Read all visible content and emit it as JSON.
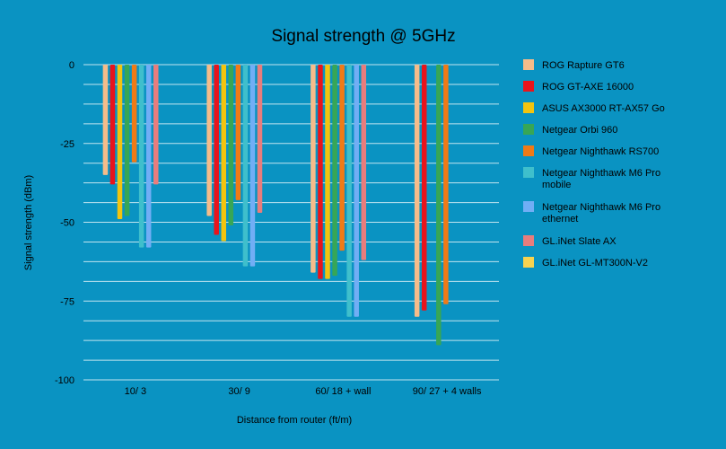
{
  "chart_data": {
    "type": "bar",
    "title": "Signal strength @ 5GHz",
    "xlabel": "Distance from router (ft/m)",
    "ylabel": "Signal strength (dBm)",
    "ylim": [
      -100,
      0
    ],
    "yticks": [
      0,
      -25,
      -50,
      -75,
      -100
    ],
    "grid": true,
    "legend_position": "right",
    "categories": [
      "10/ 3",
      "30/ 9",
      "60/ 18 + wall",
      "90/ 27 + 4 walls"
    ],
    "series": [
      {
        "name": "ROG Rapture GT6",
        "legend_lines": [
          "ROG Rapture GT6"
        ],
        "color": "#f5bc8a",
        "values": [
          -35,
          -48,
          -66,
          -80
        ]
      },
      {
        "name": "ROG GT-AXE 16000",
        "legend_lines": [
          "ROG GT-AXE 16000"
        ],
        "color": "#e8141c",
        "values": [
          -38,
          -54,
          -68,
          -78
        ]
      },
      {
        "name": "ASUS AX3000 RT-AX57 Go",
        "legend_lines": [
          "ASUS AX3000 RT-AX57 Go"
        ],
        "color": "#f2c40f",
        "values": [
          -49,
          -56,
          -68,
          null
        ]
      },
      {
        "name": "Netgear Orbi 960",
        "legend_lines": [
          "Netgear Orbi 960"
        ],
        "color": "#37a656",
        "values": [
          -48,
          -51,
          -67,
          -89
        ]
      },
      {
        "name": "Netgear Nighthawk RS700",
        "legend_lines": [
          "Netgear Nighthawk RS700"
        ],
        "color": "#f07a16",
        "values": [
          -31,
          -43,
          -59,
          -76
        ]
      },
      {
        "name": "Netgear Nighthawk M6 Pro mobile",
        "legend_lines": [
          "Netgear Nighthawk M6 Pro",
          "mobile"
        ],
        "color": "#3fbfcc",
        "values": [
          -58,
          -64,
          -80,
          null
        ]
      },
      {
        "name": "Netgear Nighthawk M6 Pro ethernet",
        "legend_lines": [
          "Netgear Nighthawk M6 Pro",
          "ethernet"
        ],
        "color": "#71aef5",
        "values": [
          -58,
          -64,
          -80,
          null
        ]
      },
      {
        "name": "GL.iNet Slate AX",
        "legend_lines": [
          "GL.iNet Slate AX"
        ],
        "color": "#e87d7d",
        "values": [
          -38,
          -47,
          -62,
          null
        ]
      },
      {
        "name": "GL.iNet GL-MT300N-V2",
        "legend_lines": [
          "GL.iNet GL-MT300N-V2"
        ],
        "color": "#f7d350",
        "values": [
          null,
          null,
          null,
          null
        ]
      }
    ]
  }
}
